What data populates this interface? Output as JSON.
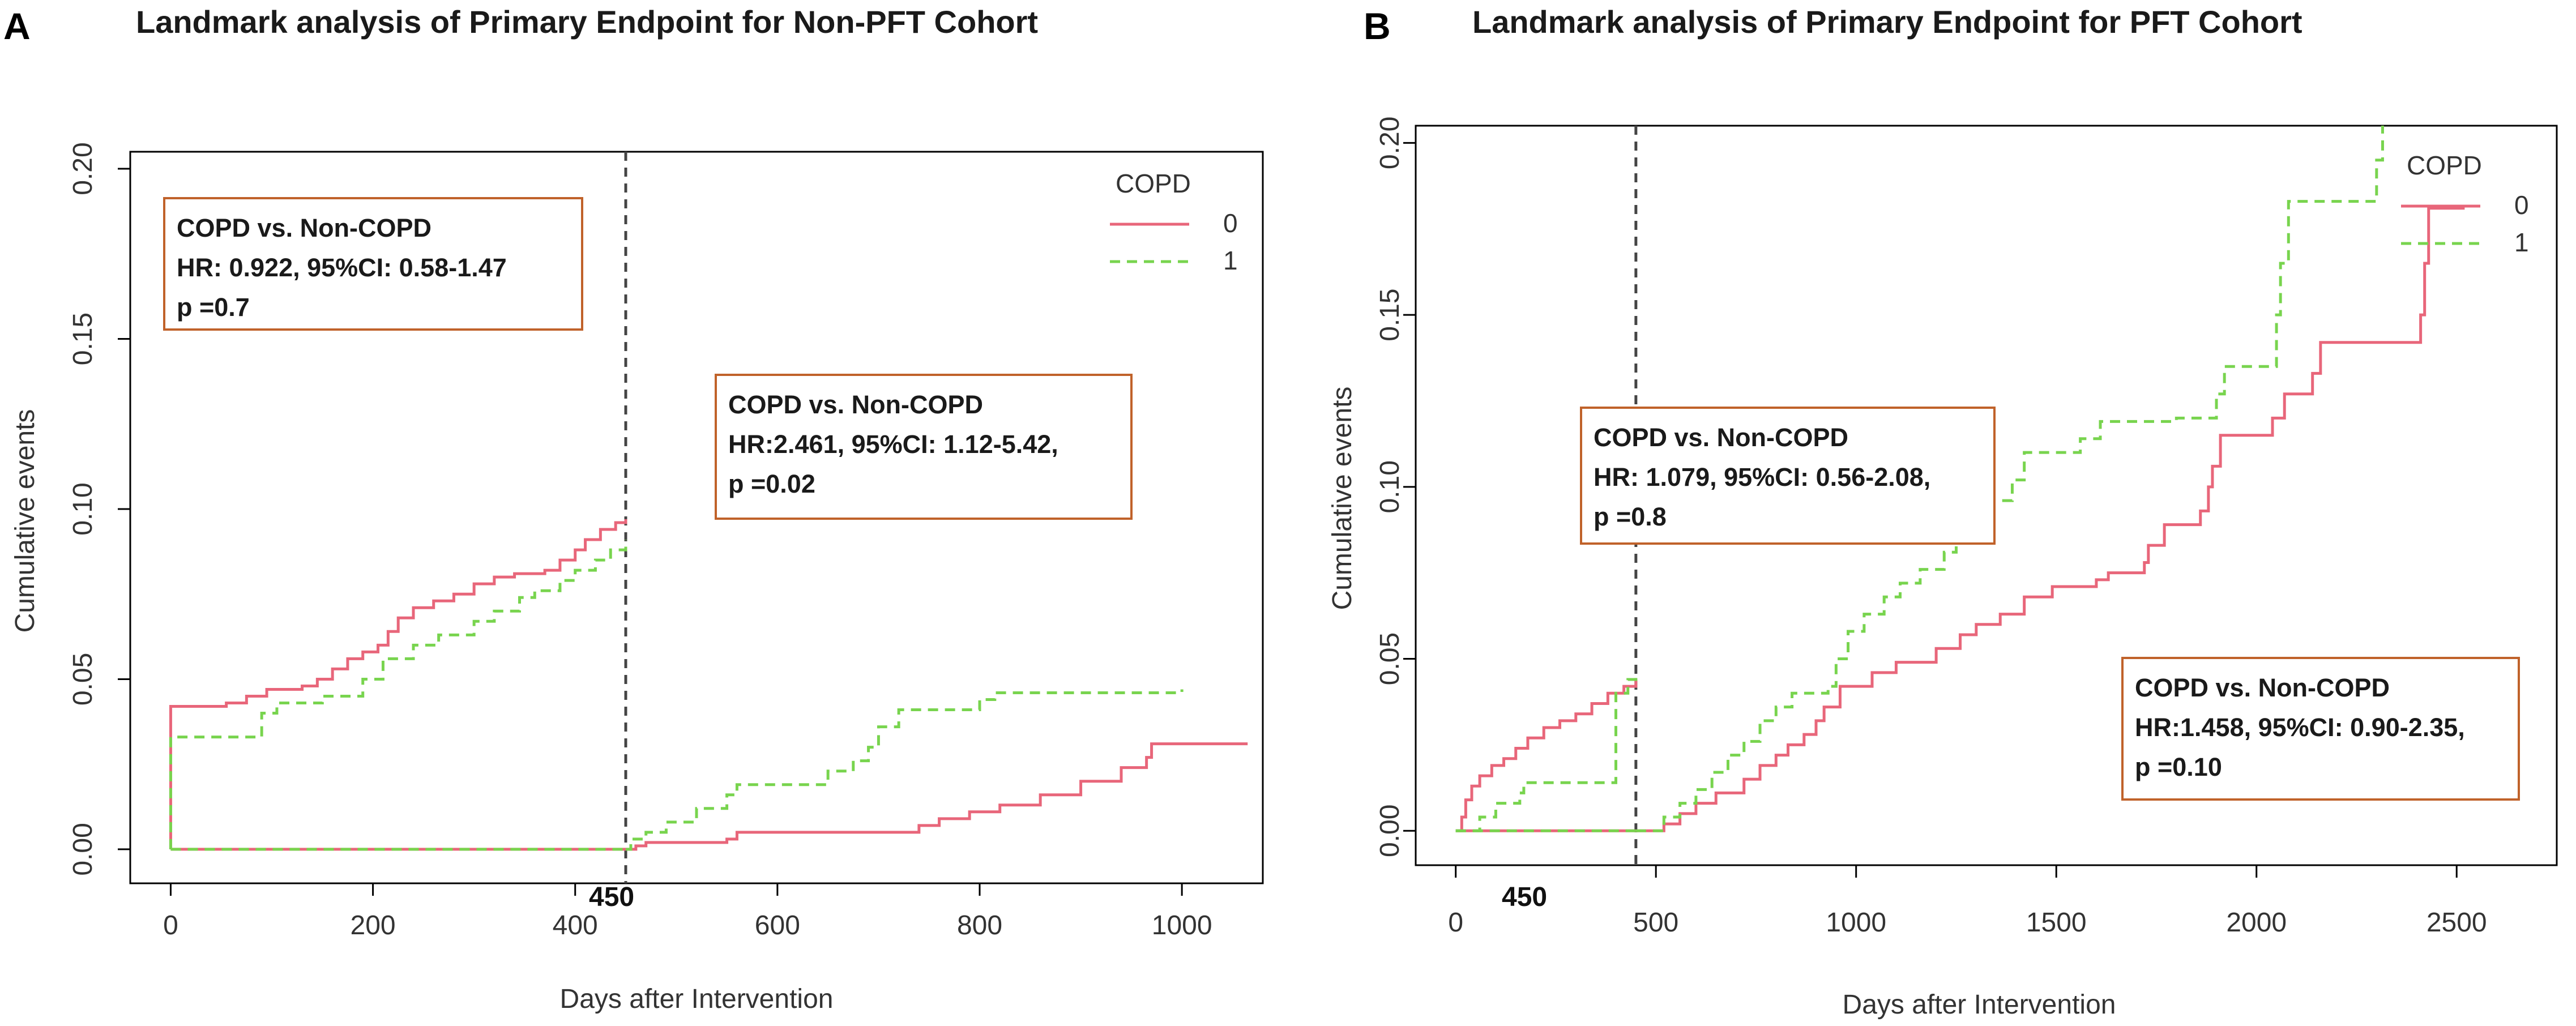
{
  "colors": {
    "group0": "#e8667a",
    "group1": "#78d44e",
    "frame": "#000000",
    "box_border": "#c0622a",
    "landmark": "#444444"
  },
  "chart_data": [
    {
      "panel": "A",
      "type": "line",
      "title": "Landmark analysis of Primary Endpoint for Non-PFT Cohort",
      "xlabel": "Days after Intervention",
      "ylabel": "Cumulative events",
      "xlim": [
        -40,
        1080
      ],
      "ylim": [
        -0.01,
        0.205
      ],
      "xticks": [
        0,
        200,
        400,
        600,
        800,
        1000
      ],
      "yticks": [
        0.0,
        0.05,
        0.1,
        0.15,
        0.2
      ],
      "ytick_labels": [
        "0.00",
        "0.05",
        "0.10",
        "0.15",
        "0.20"
      ],
      "landmark": {
        "x": 450,
        "label": "450"
      },
      "legend": {
        "title": "COPD",
        "entries": [
          "0",
          "1"
        ],
        "position": "top-right"
      },
      "annotations": [
        {
          "lines": [
            "COPD vs. Non-COPD",
            "HR: 0.922, 95%CI: 0.58-1.47",
            "p =0.7"
          ],
          "position": "top-left"
        },
        {
          "lines": [
            "COPD vs. Non-COPD",
            "HR:2.461,  95%CI: 1.12-5.42,",
            "p =0.02"
          ],
          "position": "middle-right"
        }
      ],
      "series": [
        {
          "name": "0",
          "segments": [
            [
              [
                0,
                0
              ],
              [
                0,
                0.042
              ],
              [
                25,
                0.042
              ],
              [
                55,
                0.043
              ],
              [
                75,
                0.045
              ],
              [
                95,
                0.047
              ],
              [
                130,
                0.048
              ],
              [
                145,
                0.05
              ],
              [
                160,
                0.053
              ],
              [
                175,
                0.056
              ],
              [
                190,
                0.058
              ],
              [
                205,
                0.06
              ],
              [
                215,
                0.064
              ],
              [
                225,
                0.068
              ],
              [
                240,
                0.071
              ],
              [
                260,
                0.073
              ],
              [
                280,
                0.075
              ],
              [
                300,
                0.078
              ],
              [
                320,
                0.08
              ],
              [
                340,
                0.081
              ],
              [
                370,
                0.082
              ],
              [
                385,
                0.085
              ],
              [
                400,
                0.088
              ],
              [
                410,
                0.091
              ],
              [
                425,
                0.094
              ],
              [
                440,
                0.096
              ],
              [
                450,
                0.097
              ]
            ],
            [
              [
                0,
                0
              ],
              [
                450,
                0
              ]
            ],
            [
              [
                450,
                0
              ],
              [
                460,
                0.001
              ],
              [
                470,
                0.002
              ],
              [
                550,
                0.003
              ],
              [
                560,
                0.005
              ],
              [
                740,
                0.007
              ],
              [
                760,
                0.009
              ],
              [
                790,
                0.011
              ],
              [
                820,
                0.013
              ],
              [
                860,
                0.016
              ],
              [
                900,
                0.02
              ],
              [
                940,
                0.024
              ],
              [
                965,
                0.027
              ],
              [
                970,
                0.031
              ],
              [
                1065,
                0.031
              ]
            ]
          ]
        },
        {
          "name": "1",
          "segments": [
            [
              [
                0,
                0
              ],
              [
                0,
                0.033
              ],
              [
                85,
                0.033
              ],
              [
                90,
                0.04
              ],
              [
                105,
                0.043
              ],
              [
                150,
                0.045
              ],
              [
                190,
                0.05
              ],
              [
                210,
                0.056
              ],
              [
                240,
                0.06
              ],
              [
                265,
                0.063
              ],
              [
                300,
                0.067
              ],
              [
                320,
                0.07
              ],
              [
                345,
                0.074
              ],
              [
                360,
                0.076
              ],
              [
                385,
                0.079
              ],
              [
                400,
                0.082
              ],
              [
                420,
                0.085
              ],
              [
                435,
                0.088
              ],
              [
                450,
                0.091
              ]
            ],
            [
              [
                0,
                0
              ],
              [
                450,
                0
              ]
            ],
            [
              [
                450,
                0
              ],
              [
                455,
                0.003
              ],
              [
                470,
                0.005
              ],
              [
                490,
                0.008
              ],
              [
                520,
                0.012
              ],
              [
                550,
                0.016
              ],
              [
                560,
                0.019
              ],
              [
                620,
                0.019
              ],
              [
                650,
                0.023
              ],
              [
                675,
                0.026
              ],
              [
                690,
                0.03
              ],
              [
                700,
                0.036
              ],
              [
                720,
                0.041
              ],
              [
                800,
                0.044
              ],
              [
                815,
                0.046
              ],
              [
                1000,
                0.047
              ]
            ]
          ]
        }
      ]
    },
    {
      "panel": "B",
      "type": "line",
      "title": "Landmark analysis of Primary Endpoint for PFT Cohort",
      "xlabel": "Days after Intervention",
      "ylabel": "Cumulative events",
      "xlim": [
        -100,
        2750
      ],
      "ylim": [
        -0.01,
        0.205
      ],
      "xticks": [
        0,
        500,
        1000,
        1500,
        2000,
        2500
      ],
      "yticks": [
        0.0,
        0.05,
        0.1,
        0.15,
        0.2
      ],
      "ytick_labels": [
        "0.00",
        "0.05",
        "0.10",
        "0.15",
        "0.20"
      ],
      "landmark": {
        "x": 450,
        "label": "450"
      },
      "legend": {
        "title": "COPD",
        "entries": [
          "0",
          "1"
        ],
        "position": "top-right"
      },
      "annotations": [
        {
          "lines": [
            "COPD vs. Non-COPD",
            "HR: 1.079, 95%CI: 0.56-2.08,",
            "p =0.8"
          ],
          "position": "upper-left"
        },
        {
          "lines": [
            "COPD vs. Non-COPD",
            "HR:1.458,  95%CI: 0.90-2.35,",
            "p =0.10"
          ],
          "position": "lower-right"
        }
      ],
      "series": [
        {
          "name": "0",
          "segments": [
            [
              [
                0,
                0
              ],
              [
                15,
                0.004
              ],
              [
                25,
                0.009
              ],
              [
                40,
                0.013
              ],
              [
                60,
                0.016
              ],
              [
                90,
                0.019
              ],
              [
                120,
                0.021
              ],
              [
                150,
                0.024
              ],
              [
                180,
                0.027
              ],
              [
                220,
                0.03
              ],
              [
                260,
                0.032
              ],
              [
                300,
                0.034
              ],
              [
                340,
                0.037
              ],
              [
                380,
                0.04
              ],
              [
                420,
                0.042
              ],
              [
                450,
                0.044
              ]
            ],
            [
              [
                0,
                0
              ],
              [
                450,
                0
              ]
            ],
            [
              [
                450,
                0
              ],
              [
                520,
                0.002
              ],
              [
                560,
                0.005
              ],
              [
                600,
                0.008
              ],
              [
                650,
                0.011
              ],
              [
                720,
                0.015
              ],
              [
                760,
                0.019
              ],
              [
                800,
                0.022
              ],
              [
                830,
                0.025
              ],
              [
                870,
                0.028
              ],
              [
                900,
                0.032
              ],
              [
                920,
                0.036
              ],
              [
                960,
                0.042
              ],
              [
                1040,
                0.046
              ],
              [
                1100,
                0.049
              ],
              [
                1200,
                0.053
              ],
              [
                1260,
                0.057
              ],
              [
                1300,
                0.06
              ],
              [
                1360,
                0.063
              ],
              [
                1420,
                0.068
              ],
              [
                1490,
                0.071
              ],
              [
                1600,
                0.073
              ],
              [
                1630,
                0.075
              ],
              [
                1720,
                0.078
              ],
              [
                1730,
                0.083
              ],
              [
                1770,
                0.089
              ],
              [
                1860,
                0.093
              ],
              [
                1880,
                0.1
              ],
              [
                1890,
                0.106
              ],
              [
                1910,
                0.115
              ],
              [
                2040,
                0.12
              ],
              [
                2070,
                0.127
              ],
              [
                2140,
                0.133
              ],
              [
                2160,
                0.142
              ],
              [
                2410,
                0.15
              ],
              [
                2420,
                0.165
              ],
              [
                2430,
                0.181
              ],
              [
                2520,
                0.181
              ]
            ],
            []
          ]
        },
        {
          "name": "1",
          "segments": [
            [
              [
                0,
                0
              ],
              [
                60,
                0.004
              ],
              [
                100,
                0.008
              ],
              [
                160,
                0.011
              ],
              [
                170,
                0.014
              ],
              [
                380,
                0.014
              ],
              [
                400,
                0.04
              ],
              [
                430,
                0.044
              ],
              [
                450,
                0.046
              ]
            ],
            [
              [
                0,
                0
              ],
              [
                450,
                0
              ]
            ],
            [
              [
                450,
                0
              ],
              [
                520,
                0.004
              ],
              [
                560,
                0.008
              ],
              [
                600,
                0.012
              ],
              [
                640,
                0.017
              ],
              [
                680,
                0.022
              ],
              [
                720,
                0.026
              ],
              [
                760,
                0.032
              ],
              [
                800,
                0.036
              ],
              [
                840,
                0.04
              ],
              [
                930,
                0.042
              ],
              [
                950,
                0.05
              ],
              [
                980,
                0.058
              ],
              [
                1020,
                0.063
              ],
              [
                1070,
                0.068
              ],
              [
                1110,
                0.072
              ],
              [
                1160,
                0.076
              ],
              [
                1220,
                0.081
              ],
              [
                1250,
                0.086
              ],
              [
                1290,
                0.09
              ],
              [
                1320,
                0.096
              ],
              [
                1390,
                0.102
              ],
              [
                1420,
                0.11
              ],
              [
                1560,
                0.114
              ],
              [
                1610,
                0.119
              ],
              [
                1800,
                0.12
              ],
              [
                1900,
                0.127
              ],
              [
                1920,
                0.135
              ],
              [
                2050,
                0.15
              ],
              [
                2060,
                0.165
              ],
              [
                2080,
                0.183
              ],
              [
                2300,
                0.195
              ],
              [
                2315,
                0.205
              ]
            ]
          ]
        }
      ]
    }
  ]
}
